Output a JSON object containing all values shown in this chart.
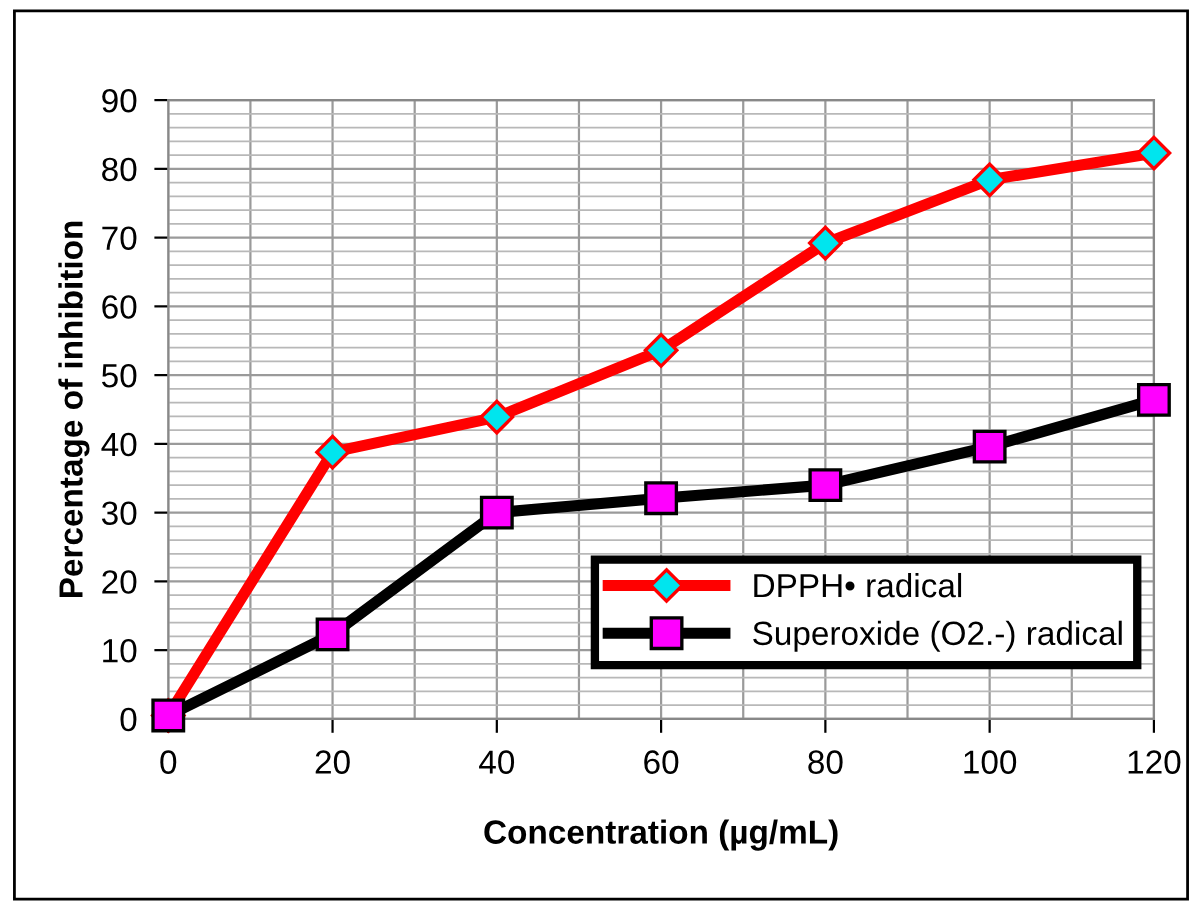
{
  "chart_data": {
    "type": "line",
    "xlabel": "Concentration (µg/mL)",
    "ylabel": "Percentage of inhibition",
    "x": [
      0,
      20,
      40,
      60,
      80,
      100,
      120
    ],
    "series": [
      {
        "name": "DPPH• radical",
        "color": "#ff0000",
        "marker": "diamond",
        "values": [
          0.5,
          38.8,
          43.9,
          53.6,
          69.2,
          78.4,
          82.3
        ]
      },
      {
        "name": "Superoxide (O2.-) radical",
        "color": "#000000",
        "marker": "square",
        "values": [
          0.5,
          12.3,
          30.0,
          32.1,
          34.0,
          39.6,
          46.4
        ]
      }
    ],
    "xlim": [
      0,
      120
    ],
    "xticks": [
      0,
      20,
      40,
      60,
      80,
      100,
      120
    ],
    "ylim": [
      0,
      90
    ],
    "yticks": [
      0,
      10,
      20,
      30,
      40,
      50,
      60,
      70,
      80,
      90
    ],
    "grid": true,
    "legend": "bottom right",
    "line_style": "solid"
  }
}
